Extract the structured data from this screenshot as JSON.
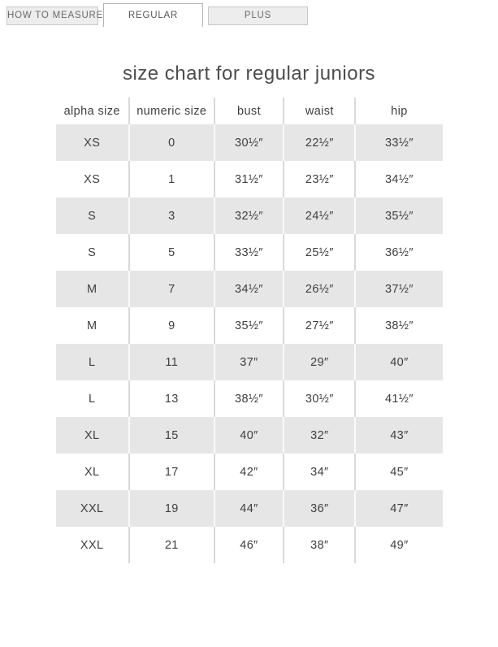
{
  "tabs": [
    {
      "label": "HOW TO MEASURE",
      "active": false
    },
    {
      "label": "REGULAR",
      "active": true
    },
    {
      "label": "PLUS",
      "active": false
    }
  ],
  "title": "size chart for regular juniors",
  "table": {
    "columns": [
      "alpha size",
      "numeric size",
      "bust",
      "waist",
      "hip"
    ],
    "rows": [
      [
        "XS",
        "0",
        "30½″",
        "22½″",
        "33½″"
      ],
      [
        "XS",
        "1",
        "31½″",
        "23½″",
        "34½″"
      ],
      [
        "S",
        "3",
        "32½″",
        "24½″",
        "35½″"
      ],
      [
        "S",
        "5",
        "33½″",
        "25½″",
        "36½″"
      ],
      [
        "M",
        "7",
        "34½″",
        "26½″",
        "37½″"
      ],
      [
        "M",
        "9",
        "35½″",
        "27½″",
        "38½″"
      ],
      [
        "L",
        "11",
        "37″",
        "29″",
        "40″"
      ],
      [
        "L",
        "13",
        "38½″",
        "30½″",
        "41½″"
      ],
      [
        "XL",
        "15",
        "40″",
        "32″",
        "43″"
      ],
      [
        "XL",
        "17",
        "42″",
        "34″",
        "45″"
      ],
      [
        "XXL",
        "19",
        "44″",
        "36″",
        "47″"
      ],
      [
        "XXL",
        "21",
        "46″",
        "38″",
        "49″"
      ]
    ]
  },
  "colors": {
    "row_stripe": "#e6e6e6",
    "inactive_tab_bg": "#ededed",
    "inactive_tab_border": "#c8c8c8",
    "active_tab_border": "#b3b3b3",
    "text": "#3f3f3f"
  }
}
